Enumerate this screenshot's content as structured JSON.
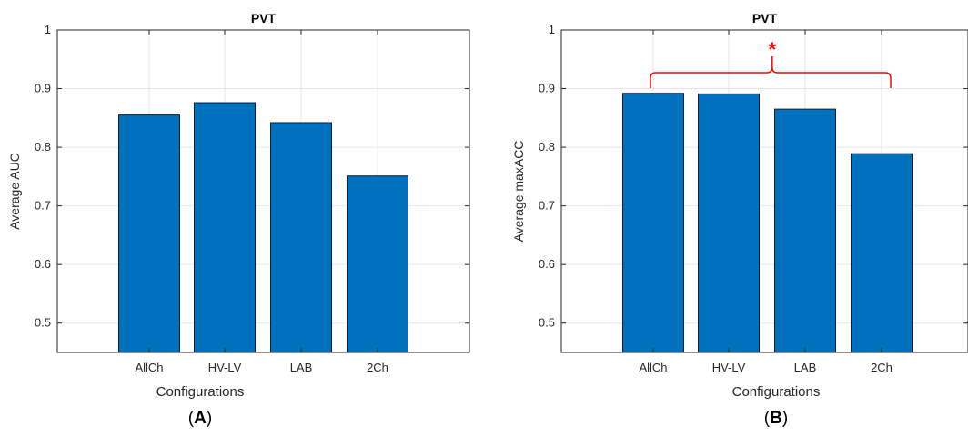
{
  "chart_data": [
    {
      "type": "bar",
      "panel_label": "A",
      "title": "PVT",
      "xlabel": "Configurations",
      "ylabel": "Average AUC",
      "categories": [
        "AllCh",
        "HV-LV",
        "LAB",
        "2Ch"
      ],
      "values": [
        0.855,
        0.876,
        0.842,
        0.751
      ],
      "ylim": [
        0.45,
        1
      ],
      "yticks": [
        "0.5",
        "0.6",
        "0.7",
        "0.8",
        "0.9",
        "1"
      ],
      "grid": true,
      "bar_color": "#0072BD",
      "significance": null
    },
    {
      "type": "bar",
      "panel_label": "B",
      "title": "PVT",
      "xlabel": "Configurations",
      "ylabel": "Average maxACC",
      "categories": [
        "AllCh",
        "HV-LV",
        "LAB",
        "2Ch"
      ],
      "values": [
        0.892,
        0.891,
        0.865,
        0.789
      ],
      "ylim": [
        0.45,
        1
      ],
      "yticks": [
        "0.5",
        "0.6",
        "0.7",
        "0.8",
        "0.9",
        "1"
      ],
      "grid": true,
      "bar_color": "#0072BD",
      "significance": {
        "label": "*",
        "from_category": "AllCh",
        "to_category": "2Ch",
        "color": "#FF0000"
      }
    }
  ]
}
